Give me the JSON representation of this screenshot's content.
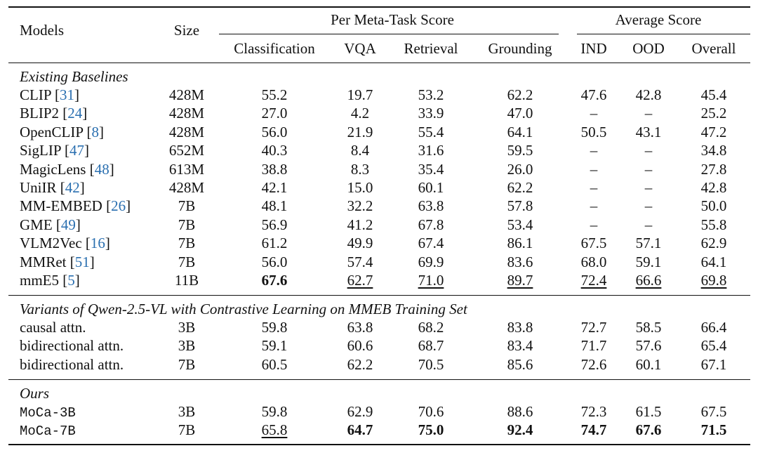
{
  "header": {
    "models": "Models",
    "size": "Size",
    "per_meta": "Per Meta-Task Score",
    "average": "Average Score",
    "cols": [
      "Classification",
      "VQA",
      "Retrieval",
      "Grounding",
      "IND",
      "OOD",
      "Overall"
    ]
  },
  "sections": [
    {
      "title": "Existing Baselines",
      "rows": [
        {
          "name": "CLIP",
          "ref": "31",
          "size": "428M",
          "v": [
            "55.2",
            "19.7",
            "53.2",
            "62.2",
            "47.6",
            "42.8",
            "45.4"
          ],
          "bold": [],
          "under": []
        },
        {
          "name": "BLIP2",
          "ref": "24",
          "size": "428M",
          "v": [
            "27.0",
            "4.2",
            "33.9",
            "47.0",
            "–",
            "–",
            "25.2"
          ],
          "bold": [],
          "under": []
        },
        {
          "name": "OpenCLIP",
          "ref": "8",
          "size": "428M",
          "v": [
            "56.0",
            "21.9",
            "55.4",
            "64.1",
            "50.5",
            "43.1",
            "47.2"
          ],
          "bold": [],
          "under": []
        },
        {
          "name": "SigLIP",
          "ref": "47",
          "size": "652M",
          "v": [
            "40.3",
            "8.4",
            "31.6",
            "59.5",
            "–",
            "–",
            "34.8"
          ],
          "bold": [],
          "under": []
        },
        {
          "name": "MagicLens",
          "ref": "48",
          "size": "613M",
          "v": [
            "38.8",
            "8.3",
            "35.4",
            "26.0",
            "–",
            "–",
            "27.8"
          ],
          "bold": [],
          "under": []
        },
        {
          "name": "UniIR",
          "ref": "42",
          "size": "428M",
          "v": [
            "42.1",
            "15.0",
            "60.1",
            "62.2",
            "–",
            "–",
            "42.8"
          ],
          "bold": [],
          "under": []
        },
        {
          "name": "MM-EMBED",
          "ref": "26",
          "size": "7B",
          "v": [
            "48.1",
            "32.2",
            "63.8",
            "57.8",
            "–",
            "–",
            "50.0"
          ],
          "bold": [],
          "under": []
        },
        {
          "name": "GME",
          "ref": "49",
          "size": "7B",
          "v": [
            "56.9",
            "41.2",
            "67.8",
            "53.4",
            "–",
            "–",
            "55.8"
          ],
          "bold": [],
          "under": []
        },
        {
          "name": "VLM2Vec",
          "ref": "16",
          "size": "7B",
          "v": [
            "61.2",
            "49.9",
            "67.4",
            "86.1",
            "67.5",
            "57.1",
            "62.9"
          ],
          "bold": [],
          "under": []
        },
        {
          "name": "MMRet",
          "ref": "51",
          "size": "7B",
          "v": [
            "56.0",
            "57.4",
            "69.9",
            "83.6",
            "68.0",
            "59.1",
            "64.1"
          ],
          "bold": [],
          "under": []
        },
        {
          "name": "mmE5",
          "ref": "5",
          "size": "11B",
          "v": [
            "67.6",
            "62.7",
            "71.0",
            "89.7",
            "72.4",
            "66.6",
            "69.8"
          ],
          "bold": [
            0
          ],
          "under": [
            1,
            2,
            3,
            4,
            5,
            6
          ]
        }
      ]
    },
    {
      "title": "Variants of Qwen-2.5-VL with Contrastive Learning on MMEB Training Set",
      "rows": [
        {
          "name": "causal attn.",
          "ref": "",
          "size": "3B",
          "v": [
            "59.8",
            "63.8",
            "68.2",
            "83.8",
            "72.7",
            "58.5",
            "66.4"
          ],
          "bold": [],
          "under": []
        },
        {
          "name": "bidirectional attn.",
          "ref": "",
          "size": "3B",
          "v": [
            "59.1",
            "60.6",
            "68.7",
            "83.4",
            "71.7",
            "57.6",
            "65.4"
          ],
          "bold": [],
          "under": []
        },
        {
          "name": "bidirectional attn.",
          "ref": "",
          "size": "7B",
          "v": [
            "60.5",
            "62.2",
            "70.5",
            "85.6",
            "72.6",
            "60.1",
            "67.1"
          ],
          "bold": [],
          "under": []
        }
      ]
    },
    {
      "title": "Ours",
      "rows": [
        {
          "name": "MoCa-3B",
          "ref": "",
          "mono": true,
          "size": "3B",
          "v": [
            "59.8",
            "62.9",
            "70.6",
            "88.6",
            "72.3",
            "61.5",
            "67.5"
          ],
          "bold": [],
          "under": []
        },
        {
          "name": "MoCa-7B",
          "ref": "",
          "mono": true,
          "size": "7B",
          "v": [
            "65.8",
            "64.7",
            "75.0",
            "92.4",
            "74.7",
            "67.6",
            "71.5"
          ],
          "bold": [
            1,
            2,
            3,
            4,
            5,
            6
          ],
          "under": [
            0
          ]
        }
      ]
    }
  ]
}
